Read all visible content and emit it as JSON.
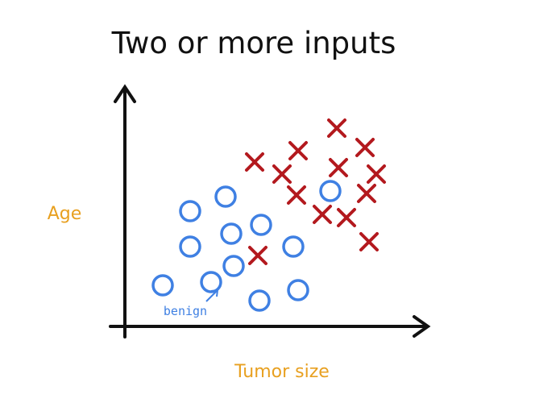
{
  "title": "Two or more inputs",
  "y_axis_label": "Age",
  "x_axis_label": "Tumor size",
  "annotation": "benign"
}
